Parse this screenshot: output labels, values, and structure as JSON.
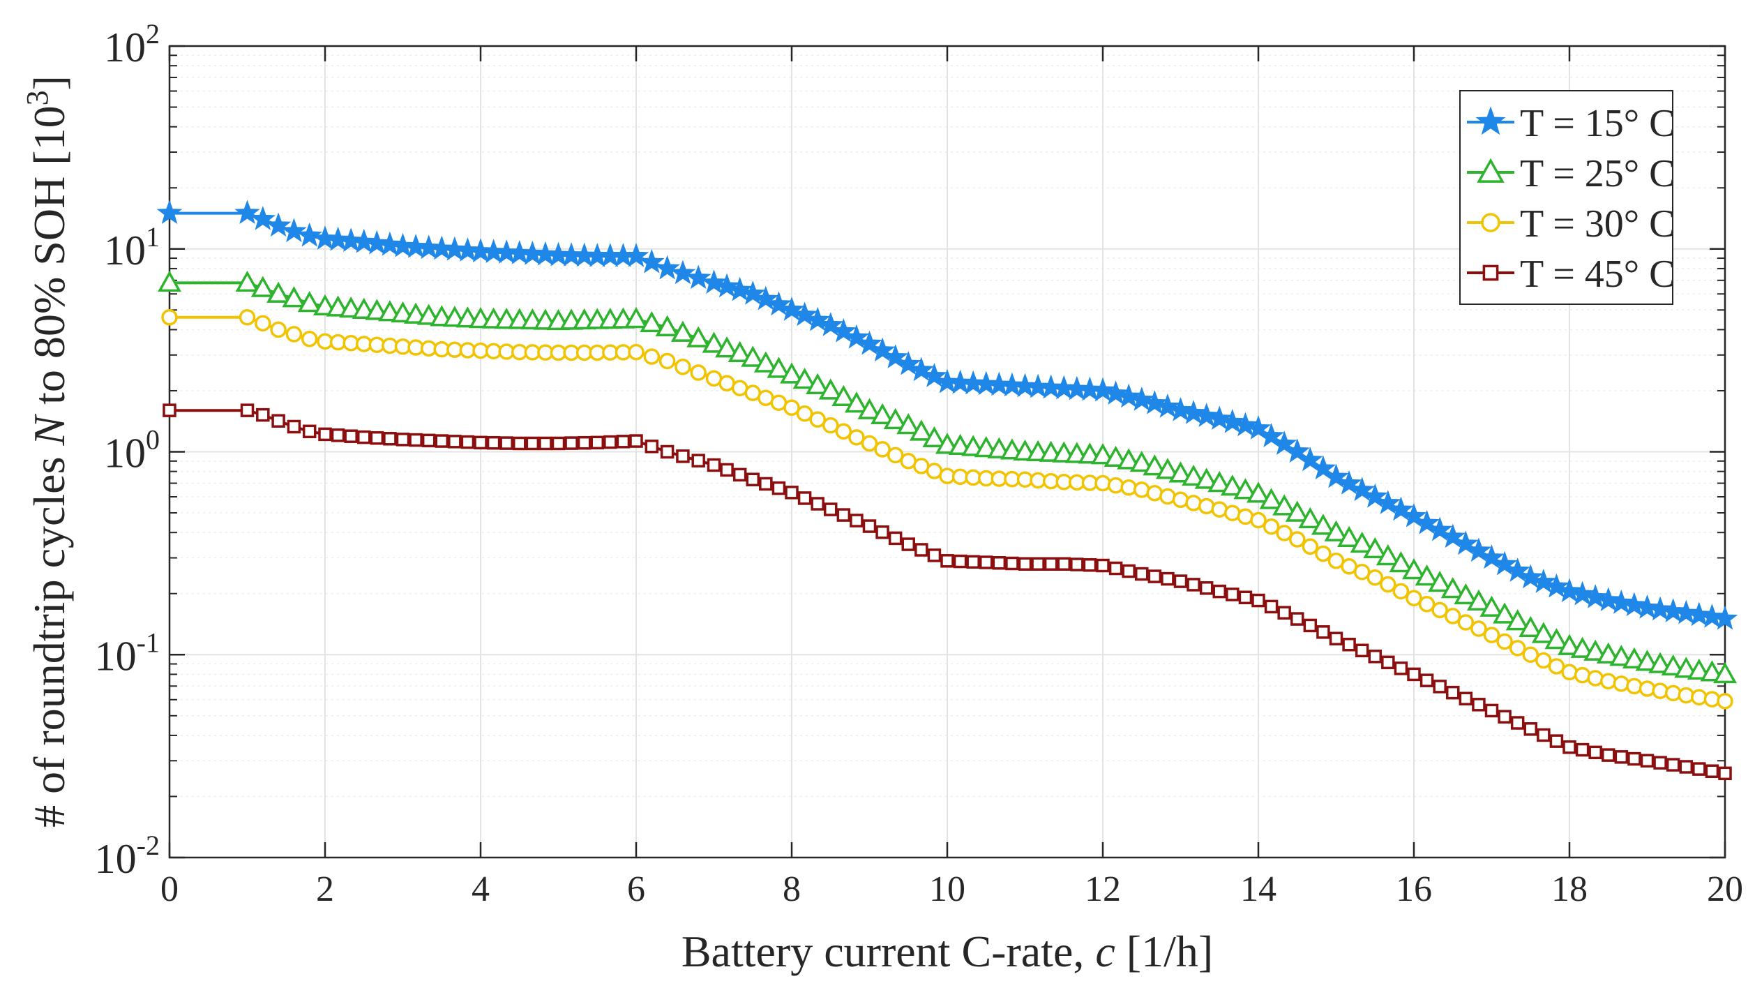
{
  "chart_data": {
    "type": "line",
    "title": "",
    "xlabel": {
      "prefix": "Battery current C-rate,  ",
      "var": "c",
      "suffix": " [1/h]"
    },
    "ylabel": {
      "prefix": "# of roundtrip cycles ",
      "var": "N",
      "mid": " to 80% SOH [10",
      "sup": "3",
      "suffix": "]"
    },
    "xlim": [
      0,
      20
    ],
    "ylim": [
      0.01,
      100
    ],
    "yscale": "log",
    "grid": true,
    "legend_position": "top-right",
    "x_ticks": [
      0,
      2,
      4,
      6,
      8,
      10,
      12,
      14,
      16,
      18,
      20
    ],
    "y_ticks": [
      {
        "value": 0.01,
        "base": "10",
        "exp": "-2"
      },
      {
        "value": 0.1,
        "base": "10",
        "exp": "-1"
      },
      {
        "value": 1,
        "base": "10",
        "exp": "0"
      },
      {
        "value": 10,
        "base": "10",
        "exp": "1"
      },
      {
        "value": 100,
        "base": "10",
        "exp": "2"
      }
    ],
    "series": [
      {
        "name": "T = 15° C",
        "color": "#1f87e8",
        "marker": "star",
        "points": [
          [
            0,
            15.0
          ],
          [
            1,
            15.0
          ],
          [
            1.2,
            14.0
          ],
          [
            1.4,
            13.0
          ],
          [
            1.6,
            12.2
          ],
          [
            1.8,
            11.6
          ],
          [
            2,
            11.2
          ],
          [
            2.5,
            10.8
          ],
          [
            3,
            10.3
          ],
          [
            3.5,
            10.0
          ],
          [
            4,
            9.7
          ],
          [
            4.5,
            9.5
          ],
          [
            5,
            9.3
          ],
          [
            5.5,
            9.2
          ],
          [
            6,
            9.2
          ],
          [
            6.4,
            8.0
          ],
          [
            7,
            6.8
          ],
          [
            7.5,
            6.0
          ],
          [
            8,
            5.0
          ],
          [
            8.5,
            4.2
          ],
          [
            9,
            3.4
          ],
          [
            9.5,
            2.7
          ],
          [
            10,
            2.2
          ],
          [
            10.5,
            2.15
          ],
          [
            11,
            2.1
          ],
          [
            11.5,
            2.05
          ],
          [
            12,
            2.0
          ],
          [
            12.5,
            1.8
          ],
          [
            13,
            1.6
          ],
          [
            13.5,
            1.45
          ],
          [
            14,
            1.3
          ],
          [
            14.5,
            1.0
          ],
          [
            15,
            0.75
          ],
          [
            15.5,
            0.6
          ],
          [
            16,
            0.48
          ],
          [
            16.5,
            0.38
          ],
          [
            17,
            0.3
          ],
          [
            17.5,
            0.24
          ],
          [
            18,
            0.205
          ],
          [
            18.5,
            0.185
          ],
          [
            19,
            0.17
          ],
          [
            19.5,
            0.16
          ],
          [
            20,
            0.15
          ]
        ]
      },
      {
        "name": "T = 25° C",
        "color": "#2db32d",
        "marker": "triangle",
        "points": [
          [
            0,
            6.8
          ],
          [
            1,
            6.8
          ],
          [
            1.2,
            6.4
          ],
          [
            1.4,
            6.0
          ],
          [
            1.6,
            5.7
          ],
          [
            1.8,
            5.4
          ],
          [
            2,
            5.2
          ],
          [
            2.5,
            5.0
          ],
          [
            3,
            4.8
          ],
          [
            3.5,
            4.6
          ],
          [
            4,
            4.5
          ],
          [
            4.5,
            4.45
          ],
          [
            5,
            4.4
          ],
          [
            5.5,
            4.45
          ],
          [
            6,
            4.5
          ],
          [
            6.4,
            4.1
          ],
          [
            7,
            3.4
          ],
          [
            7.5,
            2.9
          ],
          [
            8,
            2.4
          ],
          [
            8.5,
            2.0
          ],
          [
            9,
            1.6
          ],
          [
            9.5,
            1.35
          ],
          [
            10,
            1.08
          ],
          [
            10.5,
            1.04
          ],
          [
            11,
            1.0
          ],
          [
            11.5,
            0.98
          ],
          [
            12,
            0.96
          ],
          [
            12.5,
            0.88
          ],
          [
            13,
            0.78
          ],
          [
            13.5,
            0.7
          ],
          [
            14,
            0.62
          ],
          [
            14.5,
            0.5
          ],
          [
            15,
            0.4
          ],
          [
            15.5,
            0.33
          ],
          [
            16,
            0.26
          ],
          [
            16.5,
            0.21
          ],
          [
            17,
            0.17
          ],
          [
            17.5,
            0.135
          ],
          [
            18,
            0.11
          ],
          [
            18.5,
            0.1
          ],
          [
            19,
            0.092
          ],
          [
            19.5,
            0.085
          ],
          [
            20,
            0.08
          ]
        ]
      },
      {
        "name": "T = 30° C",
        "color": "#f2c300",
        "marker": "circle",
        "points": [
          [
            0,
            4.6
          ],
          [
            1,
            4.6
          ],
          [
            1.2,
            4.3
          ],
          [
            1.4,
            4.0
          ],
          [
            1.6,
            3.8
          ],
          [
            1.8,
            3.6
          ],
          [
            2,
            3.5
          ],
          [
            2.5,
            3.4
          ],
          [
            3,
            3.3
          ],
          [
            3.5,
            3.2
          ],
          [
            4,
            3.15
          ],
          [
            4.5,
            3.1
          ],
          [
            5,
            3.08
          ],
          [
            5.5,
            3.08
          ],
          [
            6,
            3.1
          ],
          [
            6.4,
            2.8
          ],
          [
            7,
            2.3
          ],
          [
            7.5,
            1.95
          ],
          [
            8,
            1.65
          ],
          [
            8.5,
            1.35
          ],
          [
            9,
            1.1
          ],
          [
            9.5,
            0.9
          ],
          [
            10,
            0.76
          ],
          [
            10.5,
            0.74
          ],
          [
            11,
            0.73
          ],
          [
            11.5,
            0.71
          ],
          [
            12,
            0.7
          ],
          [
            12.5,
            0.65
          ],
          [
            13,
            0.58
          ],
          [
            13.5,
            0.52
          ],
          [
            14,
            0.46
          ],
          [
            14.5,
            0.37
          ],
          [
            15,
            0.29
          ],
          [
            15.5,
            0.24
          ],
          [
            16,
            0.19
          ],
          [
            16.5,
            0.155
          ],
          [
            17,
            0.125
          ],
          [
            17.5,
            0.1
          ],
          [
            18,
            0.082
          ],
          [
            18.5,
            0.074
          ],
          [
            19,
            0.068
          ],
          [
            19.5,
            0.063
          ],
          [
            20,
            0.059
          ]
        ]
      },
      {
        "name": "T = 45° C",
        "color": "#8b0f0f",
        "marker": "square",
        "points": [
          [
            0,
            1.6
          ],
          [
            1,
            1.6
          ],
          [
            1.2,
            1.52
          ],
          [
            1.4,
            1.42
          ],
          [
            1.6,
            1.33
          ],
          [
            1.8,
            1.26
          ],
          [
            2,
            1.22
          ],
          [
            2.5,
            1.18
          ],
          [
            3,
            1.15
          ],
          [
            3.5,
            1.13
          ],
          [
            4,
            1.11
          ],
          [
            4.5,
            1.1
          ],
          [
            5,
            1.1
          ],
          [
            5.5,
            1.11
          ],
          [
            6,
            1.13
          ],
          [
            6.4,
            1.0
          ],
          [
            7,
            0.86
          ],
          [
            7.5,
            0.73
          ],
          [
            8,
            0.63
          ],
          [
            8.5,
            0.52
          ],
          [
            9,
            0.43
          ],
          [
            9.5,
            0.35
          ],
          [
            10,
            0.29
          ],
          [
            10.5,
            0.285
          ],
          [
            11,
            0.28
          ],
          [
            11.5,
            0.28
          ],
          [
            12,
            0.275
          ],
          [
            12.5,
            0.25
          ],
          [
            13,
            0.23
          ],
          [
            13.5,
            0.205
          ],
          [
            14,
            0.185
          ],
          [
            14.5,
            0.15
          ],
          [
            15,
            0.12
          ],
          [
            15.5,
            0.098
          ],
          [
            16,
            0.08
          ],
          [
            16.5,
            0.065
          ],
          [
            17,
            0.053
          ],
          [
            17.5,
            0.043
          ],
          [
            18,
            0.035
          ],
          [
            18.5,
            0.032
          ],
          [
            19,
            0.03
          ],
          [
            19.5,
            0.028
          ],
          [
            20,
            0.026
          ]
        ]
      }
    ]
  }
}
